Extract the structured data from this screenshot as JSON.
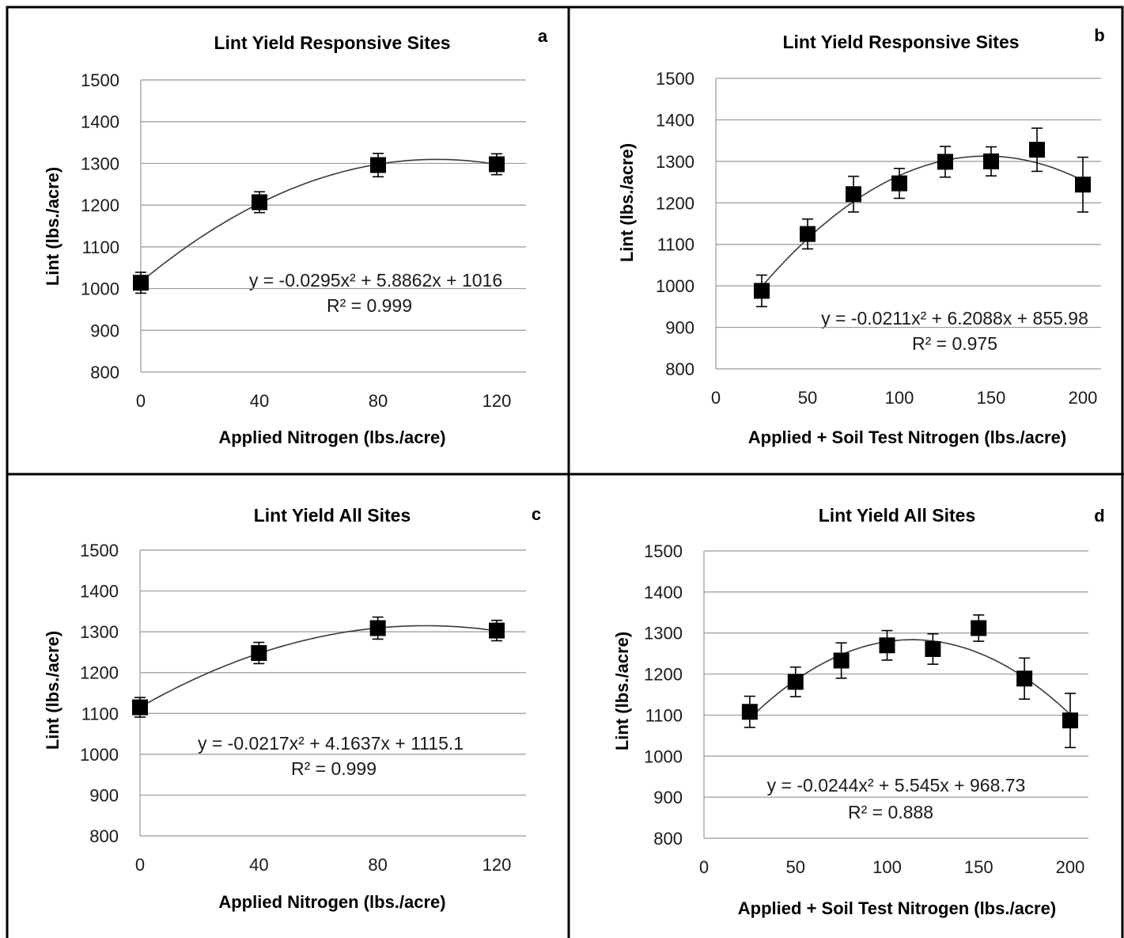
{
  "chart_data": [
    {
      "type": "scatter",
      "panel": "a",
      "title": "Lint Yield Responsive Sites",
      "xlabel": "Applied Nitrogen (lbs./acre)",
      "ylabel": "Lint (lbs./acre)",
      "xlim": [
        0,
        120
      ],
      "xticks": [
        0,
        40,
        80,
        120
      ],
      "ylim": [
        800,
        1500
      ],
      "yticks": [
        800,
        900,
        1000,
        1100,
        1200,
        1300,
        1400,
        1500
      ],
      "grid": true,
      "x": [
        0,
        40,
        80,
        120
      ],
      "y": [
        1014,
        1207,
        1296,
        1298
      ],
      "err": [
        25,
        25,
        28,
        25
      ],
      "trend": {
        "a": -0.0295,
        "b": 5.8862,
        "c": 1016,
        "x0": 0,
        "x1": 120
      },
      "equation": "y = -0.0295x² + 5.8862x + 1016",
      "r2": "R² = 0.999"
    },
    {
      "type": "scatter",
      "panel": "b",
      "title": "Lint Yield Responsive Sites",
      "xlabel": "Applied + Soil Test Nitrogen (lbs./acre)",
      "ylabel": "Lint (lbs./acre)",
      "xlim": [
        0,
        200
      ],
      "xticks": [
        0,
        50,
        100,
        150,
        200
      ],
      "ylim": [
        800,
        1500
      ],
      "yticks": [
        800,
        900,
        1000,
        1100,
        1200,
        1300,
        1400,
        1500
      ],
      "grid": true,
      "x": [
        25,
        50,
        75,
        100,
        125,
        150,
        175,
        200
      ],
      "y": [
        988,
        1125,
        1221,
        1247,
        1299,
        1300,
        1328,
        1244
      ],
      "err": [
        38,
        36,
        43,
        36,
        37,
        35,
        52,
        66
      ],
      "trend": {
        "a": -0.0211,
        "b": 6.2088,
        "c": 855.98,
        "x0": 25,
        "x1": 200
      },
      "equation": "y = -0.0211x² + 6.2088x + 855.98",
      "r2": "R² = 0.975"
    },
    {
      "type": "scatter",
      "panel": "c",
      "title": "Lint Yield All Sites",
      "xlabel": "Applied Nitrogen (lbs./acre)",
      "ylabel": "Lint (lbs./acre)",
      "xlim": [
        0,
        120
      ],
      "xticks": [
        0,
        40,
        80,
        120
      ],
      "ylim": [
        800,
        1500
      ],
      "yticks": [
        800,
        900,
        1000,
        1100,
        1200,
        1300,
        1400,
        1500
      ],
      "grid": true,
      "x": [
        0,
        40,
        80,
        120
      ],
      "y": [
        1115,
        1248,
        1309,
        1303
      ],
      "err": [
        24,
        26,
        27,
        25
      ],
      "trend": {
        "a": -0.0217,
        "b": 4.1637,
        "c": 1115.1,
        "x0": 0,
        "x1": 120
      },
      "equation": "y = -0.0217x² + 4.1637x + 1115.1",
      "r2": "R² = 0.999"
    },
    {
      "type": "scatter",
      "panel": "d",
      "title": "Lint Yield All Sites",
      "xlabel": "Applied + Soil Test Nitrogen (lbs./acre)",
      "ylabel": "Lint (lbs./acre)",
      "xlim": [
        0,
        200
      ],
      "xticks": [
        0,
        50,
        100,
        150,
        200
      ],
      "ylim": [
        800,
        1500
      ],
      "yticks": [
        800,
        900,
        1000,
        1100,
        1200,
        1300,
        1400,
        1500
      ],
      "grid": true,
      "x": [
        25,
        50,
        75,
        100,
        125,
        150,
        175,
        200
      ],
      "y": [
        1108,
        1181,
        1233,
        1270,
        1261,
        1312,
        1189,
        1087
      ],
      "err": [
        38,
        36,
        43,
        36,
        37,
        32,
        50,
        66
      ],
      "trend": {
        "a": -0.0244,
        "b": 5.545,
        "c": 968.73,
        "x0": 25,
        "x1": 200
      },
      "equation": "y = -0.0244x² + 5.545x + 968.73",
      "r2": "R² = 0.888"
    }
  ]
}
